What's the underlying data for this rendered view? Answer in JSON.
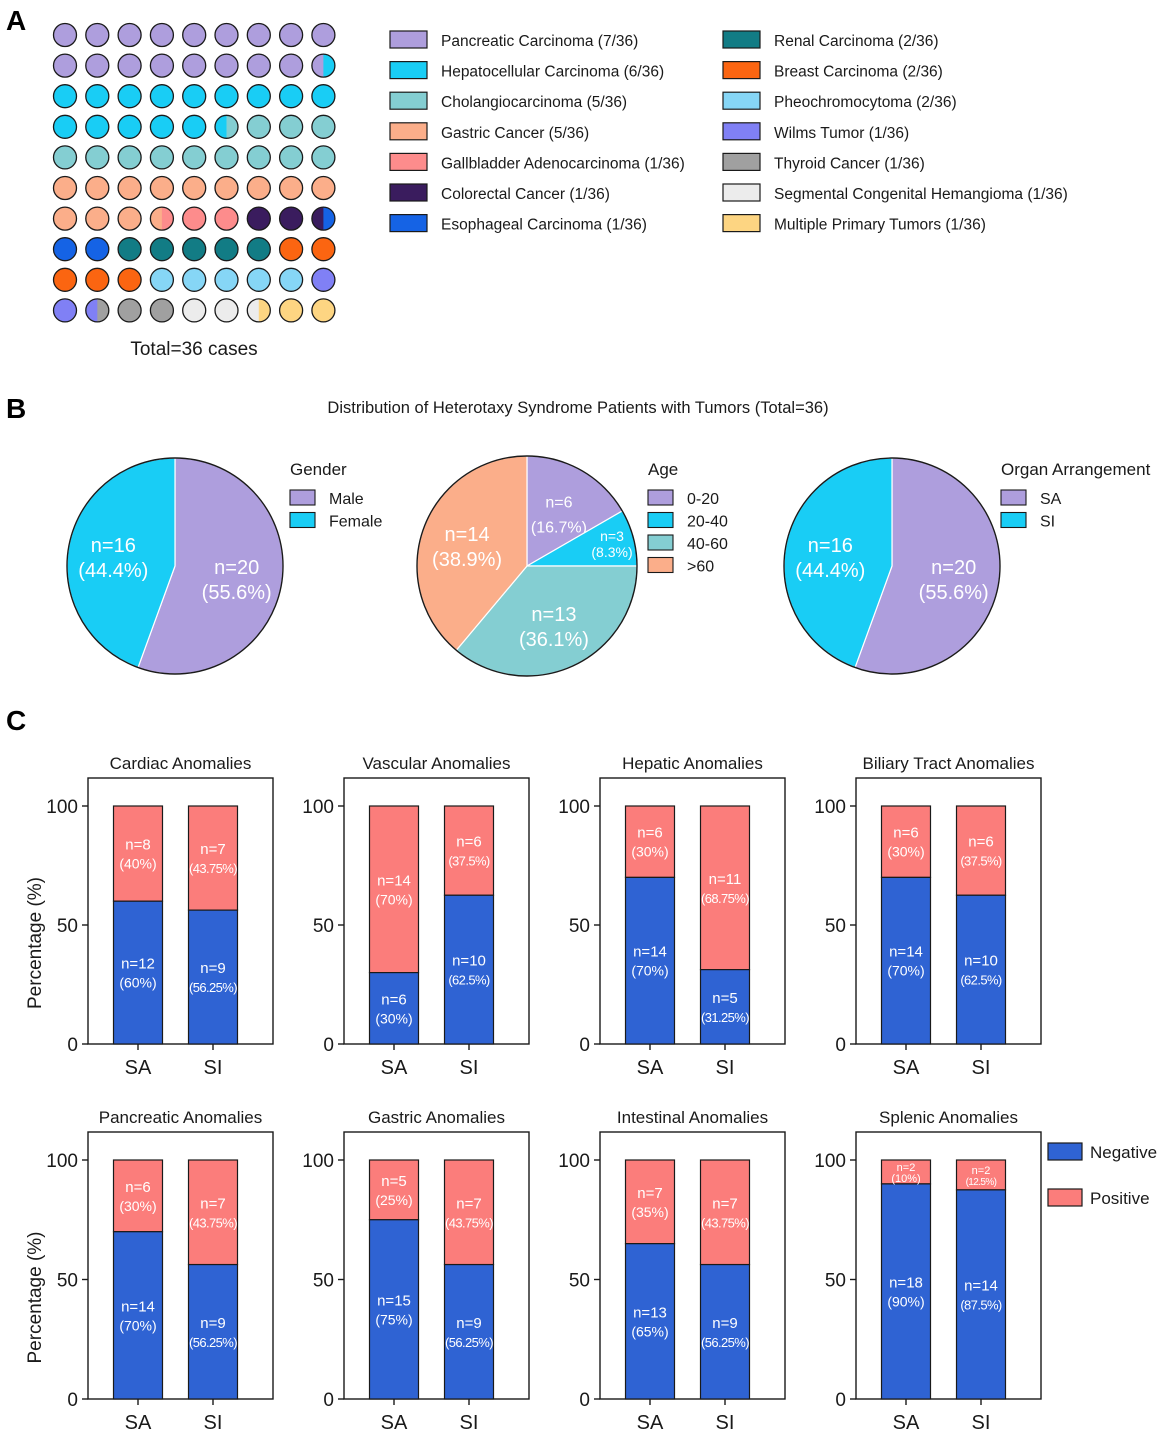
{
  "panel_labels": {
    "a": "A",
    "b": "B",
    "c": "C"
  },
  "colors": {
    "negative": "#2f63d3",
    "positive": "#fb7d7b",
    "outline": "#1a1a1a"
  },
  "chart_data": [
    {
      "id": "A",
      "type": "waffle",
      "total_label": "Total=36 cases",
      "grid": {
        "rows": 10,
        "cols": 9
      },
      "categories": [
        {
          "label": "Pancreatic Carcinoma (7/36)",
          "count": 7,
          "color": "#ae9edd"
        },
        {
          "label": "Hepatocellular Carcinoma (6/36)",
          "count": 6,
          "color": "#19cdf5"
        },
        {
          "label": "Cholangiocarcinoma (5/36)",
          "count": 5,
          "color": "#84ced2"
        },
        {
          "label": "Gastric Cancer (5/36)",
          "count": 5,
          "color": "#fbae8a"
        },
        {
          "label": "Gallbladder Adenocarcinoma (1/36)",
          "count": 1,
          "color": "#fd8c8c"
        },
        {
          "label": "Colorectal Cancer (1/36)",
          "count": 1,
          "color": "#3a1c5e"
        },
        {
          "label": "Esophageal Carcinoma (1/36)",
          "count": 1,
          "color": "#1563e5"
        },
        {
          "label": "Renal Carcinoma (2/36)",
          "count": 2,
          "color": "#127c85"
        },
        {
          "label": "Breast Carcinoma (2/36)",
          "count": 2,
          "color": "#fb6511"
        },
        {
          "label": "Pheochromocytoma  (2/36)",
          "count": 2,
          "color": "#86d6f6"
        },
        {
          "label": "Wilms Tumor  (1/36)",
          "count": 1,
          "color": "#8080f5"
        },
        {
          "label": "Thyroid Cancer (1/36)",
          "count": 1,
          "color": "#a0a0a0"
        },
        {
          "label": "Segmental Congenital Hemangioma (1/36)",
          "count": 1,
          "color": "#ececec"
        },
        {
          "label": "Multiple Primary Tumors (1/36)",
          "count": 1,
          "color": "#fdd582"
        }
      ]
    },
    {
      "id": "B",
      "type": "pie",
      "group_title": "Distribution of Heterotaxy Syndrome Patients with Tumors (Total=36)",
      "pies": [
        {
          "title": "Gender",
          "slices": [
            {
              "label": "Male",
              "count": 20,
              "n_text": "n=20",
              "pct_text": "(55.6%)",
              "color": "#ae9edd"
            },
            {
              "label": "Female",
              "count": 16,
              "n_text": "n=16",
              "pct_text": "(44.4%)",
              "color": "#19cdf5"
            }
          ]
        },
        {
          "title": "Age",
          "slices": [
            {
              "label": "0-20",
              "count": 6,
              "n_text": "n=6",
              "pct_text": "(16.7%)",
              "color": "#ae9edd"
            },
            {
              "label": "20-40",
              "count": 3,
              "n_text": "n=3",
              "pct_text": "(8.3%)",
              "color": "#19cdf5"
            },
            {
              "label": "40-60",
              "count": 13,
              "n_text": "n=13",
              "pct_text": "(36.1%)",
              "color": "#84ced2"
            },
            {
              "label": ">60",
              "count": 14,
              "n_text": "n=14",
              "pct_text": "(38.9%)",
              "color": "#fbae8a"
            }
          ]
        },
        {
          "title": "Organ Arrangement",
          "slices": [
            {
              "label": "SA",
              "count": 20,
              "n_text": "n=20",
              "pct_text": "(55.6%)",
              "color": "#ae9edd"
            },
            {
              "label": "SI",
              "count": 16,
              "n_text": "n=16",
              "pct_text": "(44.4%)",
              "color": "#19cdf5"
            }
          ]
        }
      ]
    },
    {
      "id": "C",
      "type": "bar",
      "stacked": true,
      "ylabel": "Percentage (%)",
      "ylim": [
        0,
        100
      ],
      "yticks": [
        0,
        50,
        100
      ],
      "categories": [
        "SA",
        "SI"
      ],
      "legend": [
        "Negative",
        "Positive"
      ],
      "charts": [
        {
          "title": "Cardiac Anomalies",
          "bars": [
            {
              "neg": 60,
              "neg_n": "n=12",
              "neg_pct": "(60%)",
              "pos_n": "n=8",
              "pos_pct": "(40%)"
            },
            {
              "neg": 56.25,
              "neg_n": "n=9",
              "neg_pct": "(56.25%)",
              "pos_n": "n=7",
              "pos_pct": "(43.75%)"
            }
          ]
        },
        {
          "title": "Vascular Anomalies",
          "bars": [
            {
              "neg": 30,
              "neg_n": "n=6",
              "neg_pct": "(30%)",
              "pos_n": "n=14",
              "pos_pct": "(70%)"
            },
            {
              "neg": 62.5,
              "neg_n": "n=10",
              "neg_pct": "(62.5%)",
              "pos_n": "n=6",
              "pos_pct": "(37.5%)"
            }
          ]
        },
        {
          "title": "Hepatic Anomalies",
          "bars": [
            {
              "neg": 70,
              "neg_n": "n=14",
              "neg_pct": "(70%)",
              "pos_n": "n=6",
              "pos_pct": "(30%)"
            },
            {
              "neg": 31.25,
              "neg_n": "n=5",
              "neg_pct": "(31.25%)",
              "pos_n": "n=11",
              "pos_pct": "(68.75%)"
            }
          ]
        },
        {
          "title": "Biliary Tract Anomalies",
          "bars": [
            {
              "neg": 70,
              "neg_n": "n=14",
              "neg_pct": "(70%)",
              "pos_n": "n=6",
              "pos_pct": "(30%)"
            },
            {
              "neg": 62.5,
              "neg_n": "n=10",
              "neg_pct": "(62.5%)",
              "pos_n": "n=6",
              "pos_pct": "(37.5%)"
            }
          ]
        },
        {
          "title": "Pancreatic Anomalies",
          "bars": [
            {
              "neg": 70,
              "neg_n": "n=14",
              "neg_pct": "(70%)",
              "pos_n": "n=6",
              "pos_pct": "(30%)"
            },
            {
              "neg": 56.25,
              "neg_n": "n=9",
              "neg_pct": "(56.25%)",
              "pos_n": "n=7",
              "pos_pct": "(43.75%)"
            }
          ]
        },
        {
          "title": "Gastric Anomalies",
          "bars": [
            {
              "neg": 75,
              "neg_n": "n=15",
              "neg_pct": "(75%)",
              "pos_n": "n=5",
              "pos_pct": "(25%)"
            },
            {
              "neg": 56.25,
              "neg_n": "n=9",
              "neg_pct": "(56.25%)",
              "pos_n": "n=7",
              "pos_pct": "(43.75%)"
            }
          ]
        },
        {
          "title": "Intestinal Anomalies",
          "bars": [
            {
              "neg": 65,
              "neg_n": "n=13",
              "neg_pct": "(65%)",
              "pos_n": "n=7",
              "pos_pct": "(35%)"
            },
            {
              "neg": 56.25,
              "neg_n": "n=9",
              "neg_pct": "(56.25%)",
              "pos_n": "n=7",
              "pos_pct": "(43.75%)"
            }
          ]
        },
        {
          "title": "Splenic Anomalies",
          "bars": [
            {
              "neg": 90,
              "neg_n": "n=18",
              "neg_pct": "(90%)",
              "pos_n": "n=2",
              "pos_pct": "(10%)"
            },
            {
              "neg": 87.5,
              "neg_n": "n=14",
              "neg_pct": "(87.5%)",
              "pos_n": "n=2",
              "pos_pct": "(12.5%)"
            }
          ]
        }
      ]
    }
  ]
}
